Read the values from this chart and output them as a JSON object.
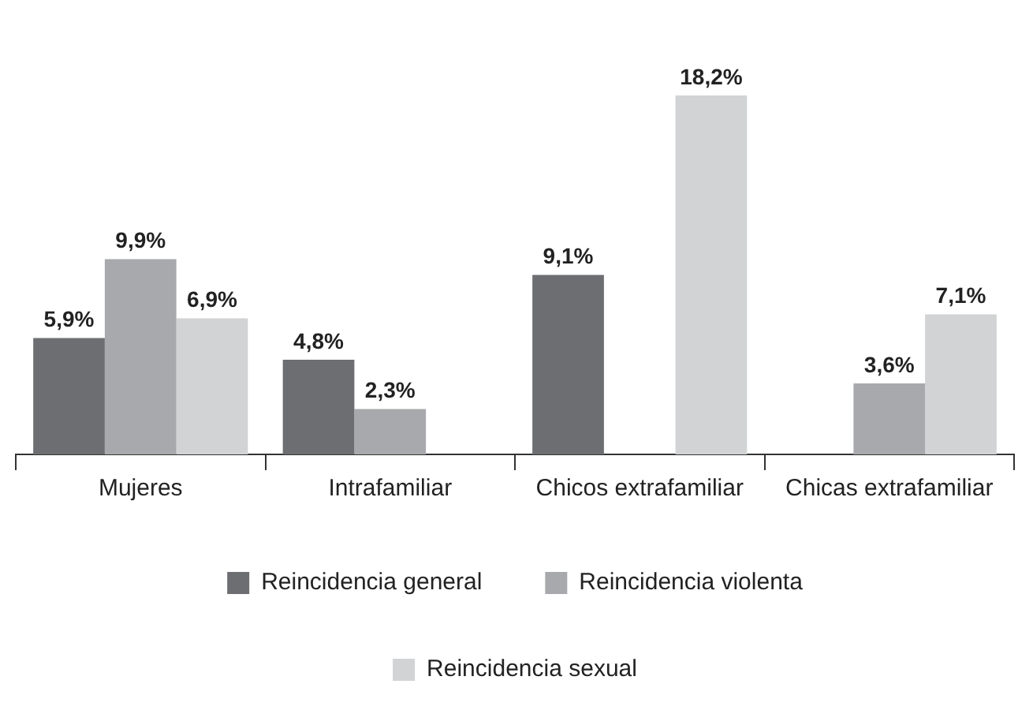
{
  "chart_data": {
    "type": "bar",
    "categories": [
      "Mujeres",
      "Intrafamiliar",
      "Chicos extrafamiliar",
      "Chicas extrafamiliar"
    ],
    "series": [
      {
        "name": "Reincidencia general",
        "color": "#6d6e71",
        "values": [
          5.9,
          4.8,
          9.1,
          null
        ],
        "value_labels": [
          "5,9%",
          "4,8%",
          "9,1%",
          null
        ]
      },
      {
        "name": "Reincidencia violenta",
        "color": "#a7a9ac",
        "values": [
          9.9,
          2.3,
          null,
          3.6
        ],
        "value_labels": [
          "9,9%",
          "2,3%",
          null,
          "3,6%"
        ]
      },
      {
        "name": "Reincidencia sexual",
        "color": "#d1d3d4",
        "values": [
          6.9,
          null,
          18.2,
          7.1
        ],
        "value_labels": [
          "6,9%",
          null,
          "18,2%",
          "7,1%"
        ]
      }
    ],
    "legend": "bottom",
    "grid": false
  }
}
